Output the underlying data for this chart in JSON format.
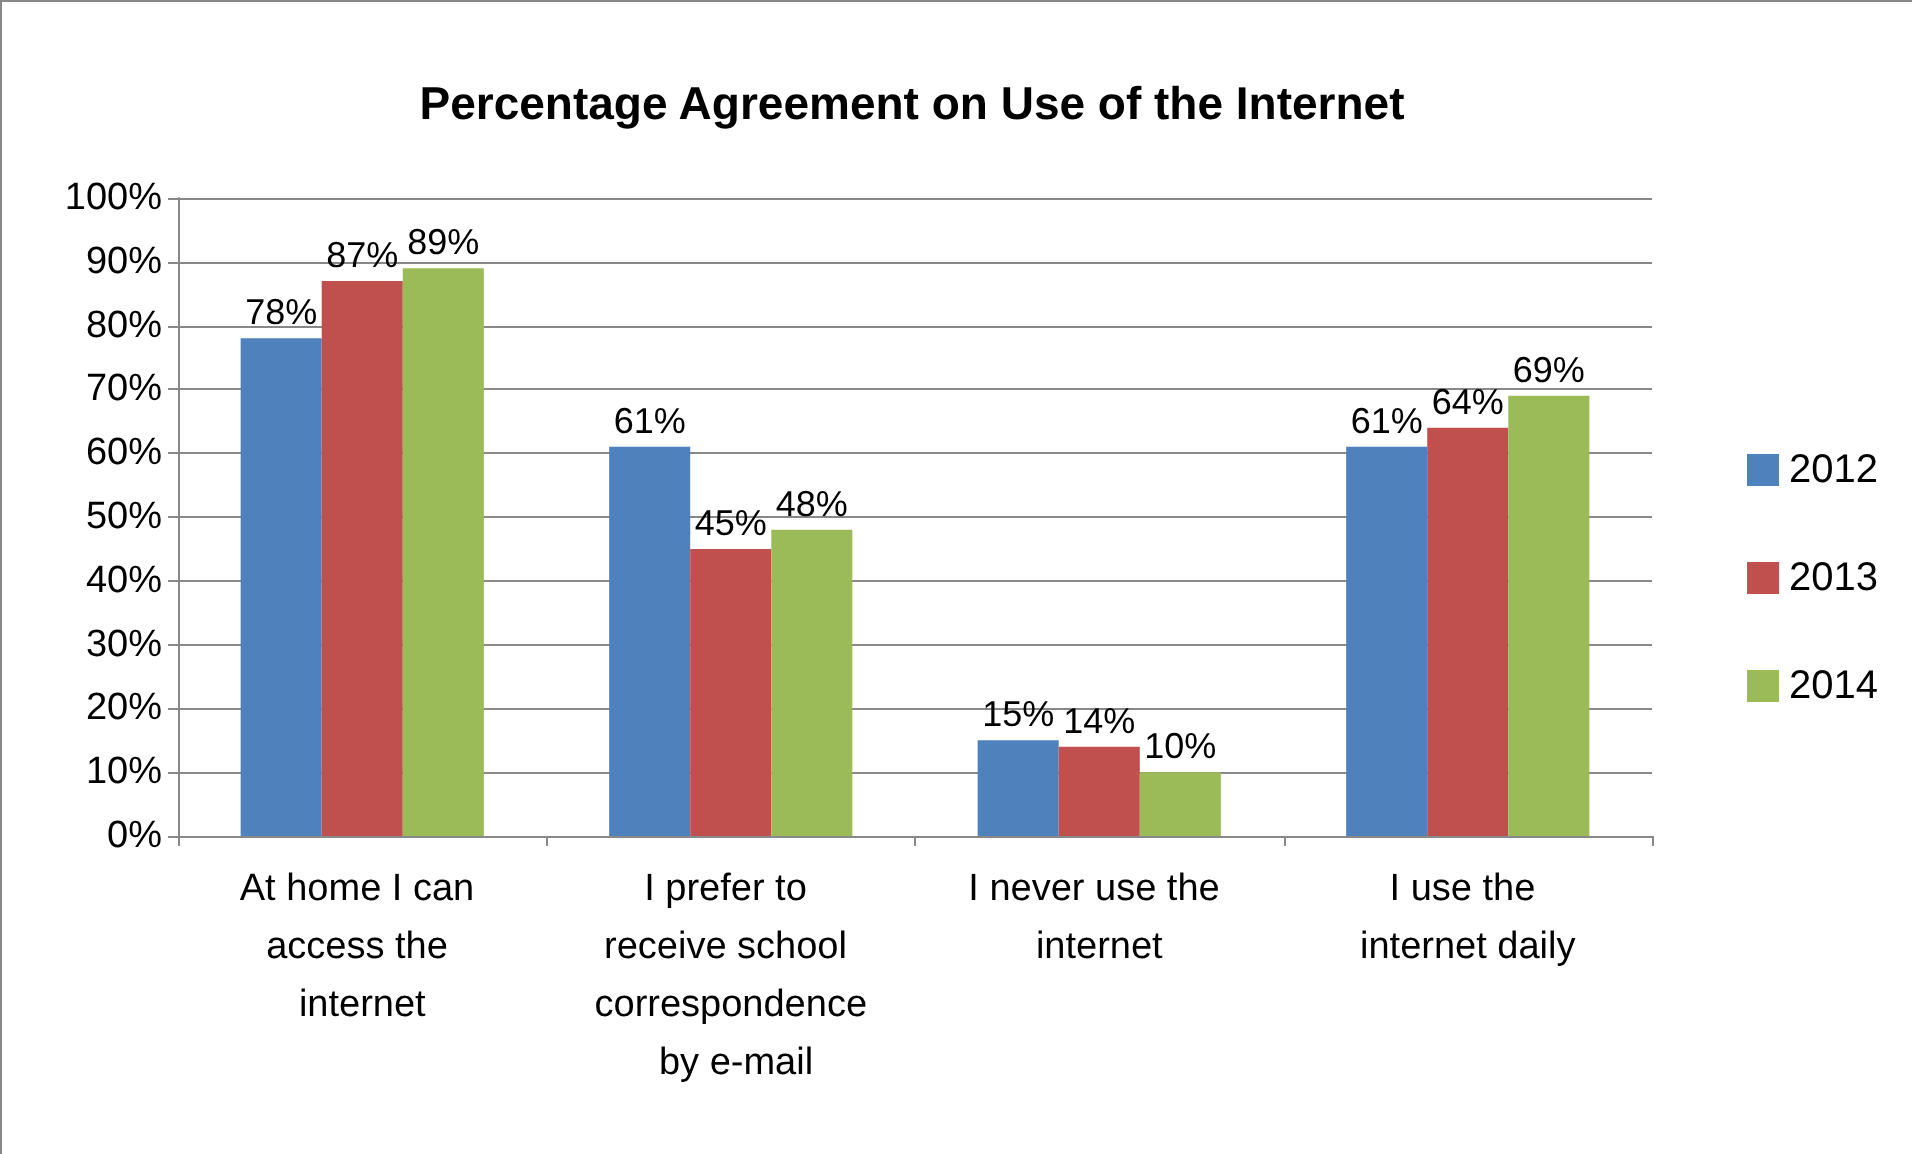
{
  "chart_data": {
    "type": "bar",
    "title": "Percentage Agreement on Use of the Internet",
    "categories": [
      "At home I can access the internet",
      "I prefer to receive school correspondence by e-mail",
      "I never use the internet",
      "I use the internet daily"
    ],
    "series": [
      {
        "name": "2012",
        "color": "#4f81bd",
        "values": [
          78,
          61,
          15,
          61
        ],
        "value_labels": [
          "78%",
          "61%",
          "15%",
          "61%"
        ]
      },
      {
        "name": "2013",
        "color": "#c0504d",
        "values": [
          87,
          45,
          14,
          64
        ],
        "value_labels": [
          "87%",
          "45%",
          "14%",
          "64%"
        ]
      },
      {
        "name": "2014",
        "color": "#9bbb59",
        "values": [
          89,
          48,
          10,
          69
        ],
        "value_labels": [
          "89%",
          "48%",
          "10%",
          "69%"
        ]
      }
    ],
    "ylim": [
      0,
      100
    ],
    "yticks": [
      {
        "value": 0,
        "label": "0%"
      },
      {
        "value": 10,
        "label": "10%"
      },
      {
        "value": 20,
        "label": "20%"
      },
      {
        "value": 30,
        "label": "30%"
      },
      {
        "value": 40,
        "label": "40%"
      },
      {
        "value": 50,
        "label": "50%"
      },
      {
        "value": 60,
        "label": "60%"
      },
      {
        "value": 70,
        "label": "70%"
      },
      {
        "value": 80,
        "label": "80%"
      },
      {
        "value": 90,
        "label": "90%"
      },
      {
        "value": 100,
        "label": "100%"
      }
    ],
    "grid": "y",
    "legend": "right"
  }
}
